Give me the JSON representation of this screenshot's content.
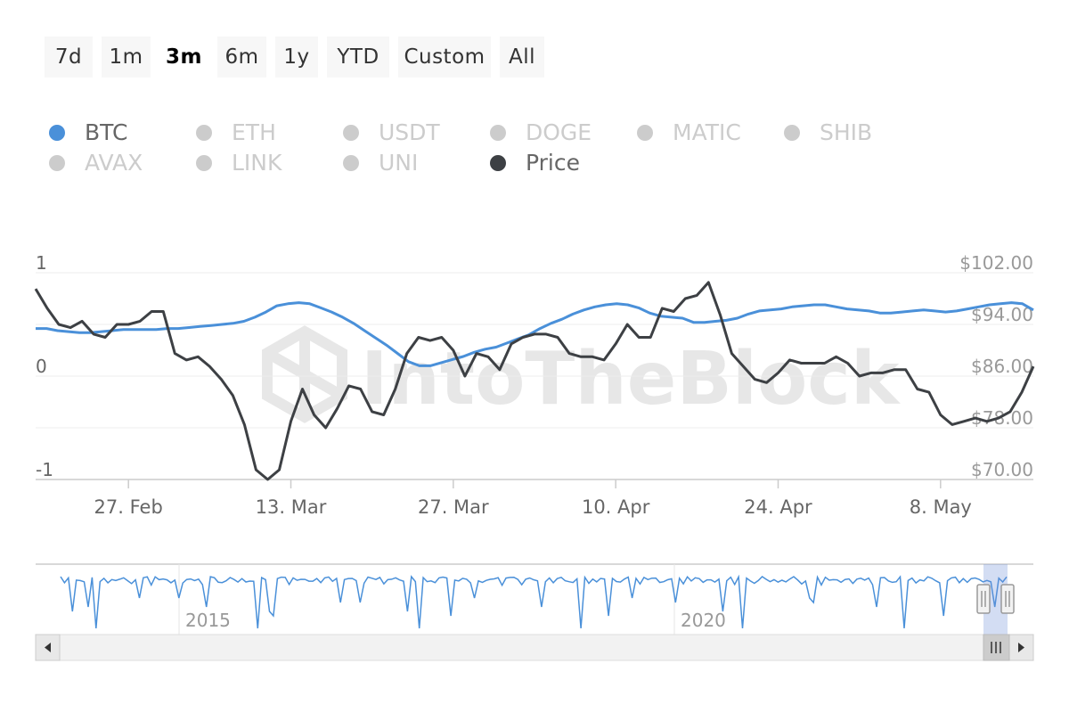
{
  "range_buttons": [
    {
      "label": "7d",
      "active": false
    },
    {
      "label": "1m",
      "active": false
    },
    {
      "label": "3m",
      "active": true
    },
    {
      "label": "6m",
      "active": false
    },
    {
      "label": "1y",
      "active": false
    },
    {
      "label": "YTD",
      "active": false
    },
    {
      "label": "Custom",
      "active": false
    },
    {
      "label": "All",
      "active": false
    }
  ],
  "legend": [
    {
      "label": "BTC",
      "color": "#4a90d9",
      "active": true
    },
    {
      "label": "ETH",
      "color": "#cccccc",
      "active": false
    },
    {
      "label": "USDT",
      "color": "#cccccc",
      "active": false
    },
    {
      "label": "DOGE",
      "color": "#cccccc",
      "active": false
    },
    {
      "label": "MATIC",
      "color": "#cccccc",
      "active": false
    },
    {
      "label": "SHIB",
      "color": "#cccccc",
      "active": false
    },
    {
      "label": "AVAX",
      "color": "#cccccc",
      "active": false
    },
    {
      "label": "LINK",
      "color": "#cccccc",
      "active": false
    },
    {
      "label": "UNI",
      "color": "#cccccc",
      "active": false
    },
    {
      "label": "Price",
      "color": "#3d4044",
      "active": true
    }
  ],
  "watermark": "IntoTheBlock",
  "chart_data": {
    "type": "line",
    "x_ticks": [
      "27. Feb",
      "13. Mar",
      "27. Mar",
      "10. Apr",
      "24. Apr",
      "8. May"
    ],
    "x_tick_index": [
      8,
      22,
      36,
      50,
      64,
      78
    ],
    "y_left": {
      "ticks": [
        "1",
        "0",
        "-1"
      ],
      "values": [
        1,
        0,
        -1
      ],
      "range": [
        -1,
        1
      ]
    },
    "y_right": {
      "ticks": [
        "$102.00",
        "$94.00",
        "$86.00",
        "$78.00",
        "$70.00"
      ],
      "values": [
        102,
        94,
        86,
        78,
        70
      ],
      "range": [
        70,
        102
      ]
    },
    "grid": true,
    "series": [
      {
        "name": "BTC",
        "axis": "left",
        "color": "#4a90d9",
        "values": [
          0.46,
          0.46,
          0.44,
          0.43,
          0.42,
          0.42,
          0.43,
          0.44,
          0.45,
          0.45,
          0.45,
          0.45,
          0.46,
          0.46,
          0.47,
          0.48,
          0.49,
          0.5,
          0.51,
          0.53,
          0.57,
          0.62,
          0.68,
          0.7,
          0.71,
          0.7,
          0.66,
          0.62,
          0.57,
          0.51,
          0.44,
          0.37,
          0.3,
          0.22,
          0.14,
          0.1,
          0.1,
          0.13,
          0.16,
          0.19,
          0.23,
          0.26,
          0.28,
          0.32,
          0.36,
          0.4,
          0.46,
          0.51,
          0.55,
          0.6,
          0.64,
          0.67,
          0.69,
          0.7,
          0.69,
          0.66,
          0.61,
          0.58,
          0.57,
          0.56,
          0.52,
          0.52,
          0.53,
          0.54,
          0.56,
          0.6,
          0.63,
          0.64,
          0.65,
          0.67,
          0.68,
          0.69,
          0.69,
          0.67,
          0.65,
          0.64,
          0.63,
          0.61,
          0.61,
          0.62,
          0.63,
          0.64,
          0.63,
          0.62,
          0.63,
          0.65,
          0.67,
          0.69,
          0.7,
          0.71,
          0.7,
          0.64
        ]
      },
      {
        "name": "Price",
        "axis": "right",
        "color": "#3d4044",
        "values": [
          99.5,
          96.5,
          94.0,
          93.5,
          94.5,
          92.5,
          92.0,
          94.0,
          94.0,
          94.5,
          96.0,
          96.0,
          89.5,
          88.5,
          89.0,
          87.5,
          85.5,
          83.0,
          78.5,
          71.5,
          70.0,
          71.5,
          79.0,
          84.0,
          80.0,
          78.0,
          81.0,
          84.5,
          84.0,
          80.5,
          80.0,
          84.0,
          89.5,
          92.0,
          91.5,
          92.0,
          90.0,
          86.0,
          89.5,
          89.0,
          87.0,
          91.0,
          92.0,
          92.5,
          92.5,
          92.0,
          89.5,
          89.0,
          89.0,
          88.5,
          91.0,
          94.0,
          92.0,
          92.0,
          96.5,
          96.0,
          98.0,
          98.5,
          100.5,
          95.5,
          89.5,
          87.5,
          85.5,
          85.0,
          86.5,
          88.5,
          88.0,
          88.0,
          88.0,
          89.0,
          88.0,
          86.0,
          86.5,
          86.5,
          87.0,
          87.0,
          84.0,
          83.5,
          80.0,
          78.5,
          79.0,
          79.5,
          79.0,
          79.5,
          80.5,
          83.5,
          87.5
        ]
      }
    ]
  },
  "navigator": {
    "year_labels": [
      "2015",
      "2020"
    ]
  }
}
